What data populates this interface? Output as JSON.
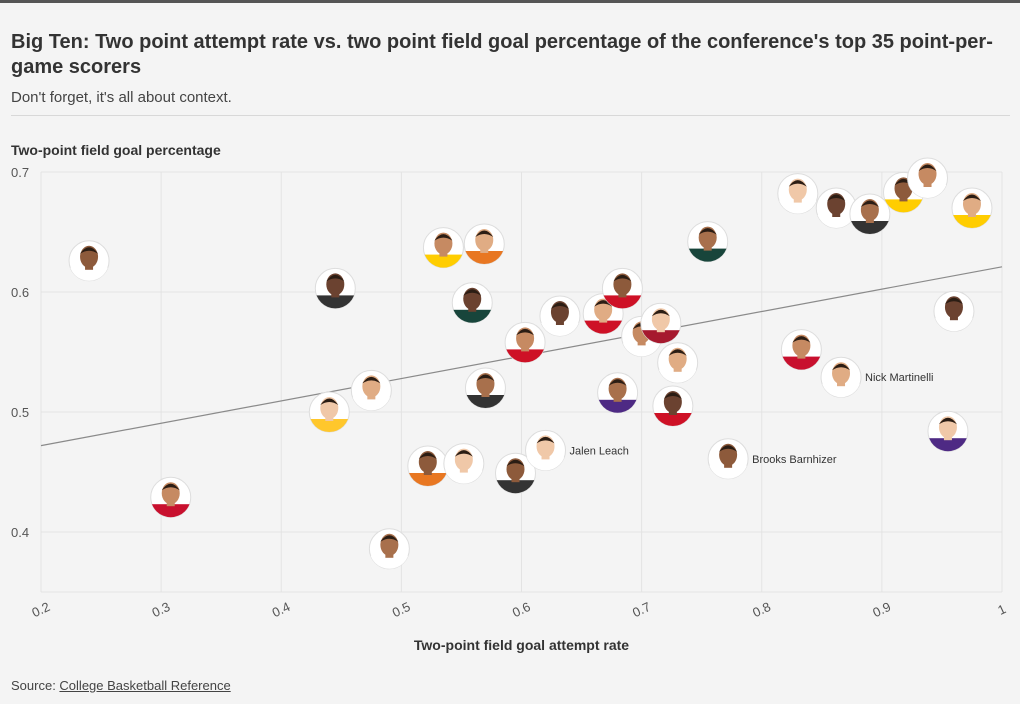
{
  "header": {
    "title": "Big Ten: Two point attempt rate vs. two point field goal percentage of the conference's top 35 point-per-game scorers",
    "subtitle": "Don't forget, it's all about context."
  },
  "footer": {
    "source_prefix": "Source: ",
    "source_link": "College Basketball Reference"
  },
  "colors": {
    "background": "#f4f4f4",
    "grid": "#e3e3e3",
    "trend": "#8a8a8a",
    "topbar": "#555555"
  },
  "chart_data": {
    "type": "scatter",
    "xlabel": "Two-point field goal attempt rate",
    "ylabel": "Two-point field goal percentage",
    "xlim": [
      0.2,
      1.0
    ],
    "ylim": [
      0.35,
      0.7
    ],
    "xticks": [
      "0.2",
      "0.3",
      "0.4",
      "0.5",
      "0.6",
      "0.7",
      "0.8",
      "0.9",
      "1"
    ],
    "yticks": [
      "0.4",
      "0.5",
      "0.6",
      "0.7"
    ],
    "grid": true,
    "trendline": {
      "x": [
        0.2,
        1.0
      ],
      "y": [
        0.472,
        0.621
      ]
    },
    "points": [
      {
        "x": 0.24,
        "y": 0.626,
        "label": "",
        "jersey": "#ffffff"
      },
      {
        "x": 0.308,
        "y": 0.429,
        "label": "",
        "jersey": "#c8102e"
      },
      {
        "x": 0.44,
        "y": 0.5,
        "label": "",
        "jersey": "#ffc72c"
      },
      {
        "x": 0.445,
        "y": 0.603,
        "label": "",
        "jersey": "#333333"
      },
      {
        "x": 0.475,
        "y": 0.518,
        "label": "",
        "jersey": "#ffffff"
      },
      {
        "x": 0.49,
        "y": 0.386,
        "label": "",
        "jersey": "#ffffff"
      },
      {
        "x": 0.522,
        "y": 0.455,
        "label": "",
        "jersey": "#e87722"
      },
      {
        "x": 0.535,
        "y": 0.637,
        "label": "",
        "jersey": "#ffcd00"
      },
      {
        "x": 0.552,
        "y": 0.457,
        "label": "",
        "jersey": "#ffffff"
      },
      {
        "x": 0.559,
        "y": 0.591,
        "label": "",
        "jersey": "#18453b"
      },
      {
        "x": 0.569,
        "y": 0.64,
        "label": "",
        "jersey": "#e87722"
      },
      {
        "x": 0.57,
        "y": 0.52,
        "label": "",
        "jersey": "#333333"
      },
      {
        "x": 0.595,
        "y": 0.449,
        "label": "",
        "jersey": "#333333"
      },
      {
        "x": 0.603,
        "y": 0.558,
        "label": "",
        "jersey": "#ce1126"
      },
      {
        "x": 0.62,
        "y": 0.468,
        "label": "Jalen Leach",
        "jersey": "#ffffff"
      },
      {
        "x": 0.632,
        "y": 0.58,
        "label": "",
        "jersey": "#ffffff"
      },
      {
        "x": 0.668,
        "y": 0.582,
        "label": "",
        "jersey": "#ce1126"
      },
      {
        "x": 0.68,
        "y": 0.516,
        "label": "",
        "jersey": "#4e2a84"
      },
      {
        "x": 0.684,
        "y": 0.603,
        "label": "",
        "jersey": "#ce1126"
      },
      {
        "x": 0.7,
        "y": 0.563,
        "label": "",
        "jersey": "#ffffff"
      },
      {
        "x": 0.716,
        "y": 0.574,
        "label": "",
        "jersey": "#a6192e"
      },
      {
        "x": 0.726,
        "y": 0.505,
        "label": "",
        "jersey": "#ce1126"
      },
      {
        "x": 0.73,
        "y": 0.541,
        "label": "",
        "jersey": "#ffffff"
      },
      {
        "x": 0.755,
        "y": 0.642,
        "label": "",
        "jersey": "#18453b"
      },
      {
        "x": 0.772,
        "y": 0.461,
        "label": "Brooks Barnhizer",
        "jersey": "#ffffff"
      },
      {
        "x": 0.833,
        "y": 0.552,
        "label": "",
        "jersey": "#c8102e"
      },
      {
        "x": 0.83,
        "y": 0.682,
        "label": "",
        "jersey": "#ffffff"
      },
      {
        "x": 0.862,
        "y": 0.67,
        "label": "",
        "jersey": "#ffffff"
      },
      {
        "x": 0.866,
        "y": 0.529,
        "label": "Nick Martinelli",
        "jersey": "#ffffff"
      },
      {
        "x": 0.89,
        "y": 0.665,
        "label": "",
        "jersey": "#333333"
      },
      {
        "x": 0.918,
        "y": 0.683,
        "label": "",
        "jersey": "#ffcd00"
      },
      {
        "x": 0.938,
        "y": 0.695,
        "label": "",
        "jersey": "#ffffff"
      },
      {
        "x": 0.955,
        "y": 0.484,
        "label": "",
        "jersey": "#4e2a84"
      },
      {
        "x": 0.96,
        "y": 0.584,
        "label": "",
        "jersey": "#ffffff"
      },
      {
        "x": 0.975,
        "y": 0.67,
        "label": "",
        "jersey": "#ffcd00"
      }
    ]
  }
}
